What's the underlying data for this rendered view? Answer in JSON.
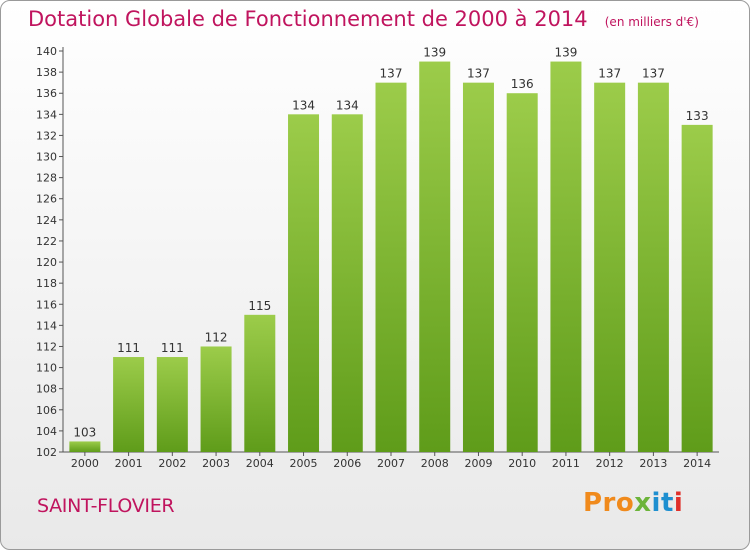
{
  "header": {
    "title": "Dotation Globale de Fonctionnement de 2000 à 2014",
    "subtitle": "(en milliers d'€)"
  },
  "footer": {
    "city": "SAINT-FLOVIER",
    "logo_text": "Proxiti",
    "logo_parts": [
      "Pro",
      "x",
      "it",
      "i"
    ]
  },
  "colors": {
    "title": "#c0145e",
    "bar_light": "#9ccc4a",
    "bar_dark": "#5f9c1a",
    "logo_orange": "#f08a1c",
    "logo_green": "#6cb43a",
    "logo_blue": "#1e8fd0",
    "logo_red": "#e0302a"
  },
  "chart_data": {
    "type": "bar",
    "categories": [
      "2000",
      "2001",
      "2002",
      "2003",
      "2004",
      "2005",
      "2006",
      "2007",
      "2008",
      "2009",
      "2010",
      "2011",
      "2012",
      "2013",
      "2014"
    ],
    "values": [
      103,
      111,
      111,
      112,
      115,
      134,
      134,
      137,
      139,
      137,
      136,
      139,
      137,
      137,
      133
    ],
    "value_labels": [
      "103",
      "111",
      "111",
      "112",
      "115",
      "134",
      "134",
      "137",
      "139",
      "137",
      "136",
      "139",
      "137",
      "137",
      "133"
    ],
    "title": "Dotation Globale de Fonctionnement de 2000 à 2014",
    "subtitle": "(en milliers d'€)",
    "xlabel": "",
    "ylabel": "",
    "ylim": [
      102,
      140
    ],
    "yticks": [
      "102",
      "104",
      "106",
      "108",
      "110",
      "112",
      "114",
      "116",
      "118",
      "120",
      "122",
      "124",
      "126",
      "128",
      "130",
      "132",
      "134",
      "136",
      "138",
      "140"
    ],
    "grid": false,
    "legend": "none"
  }
}
